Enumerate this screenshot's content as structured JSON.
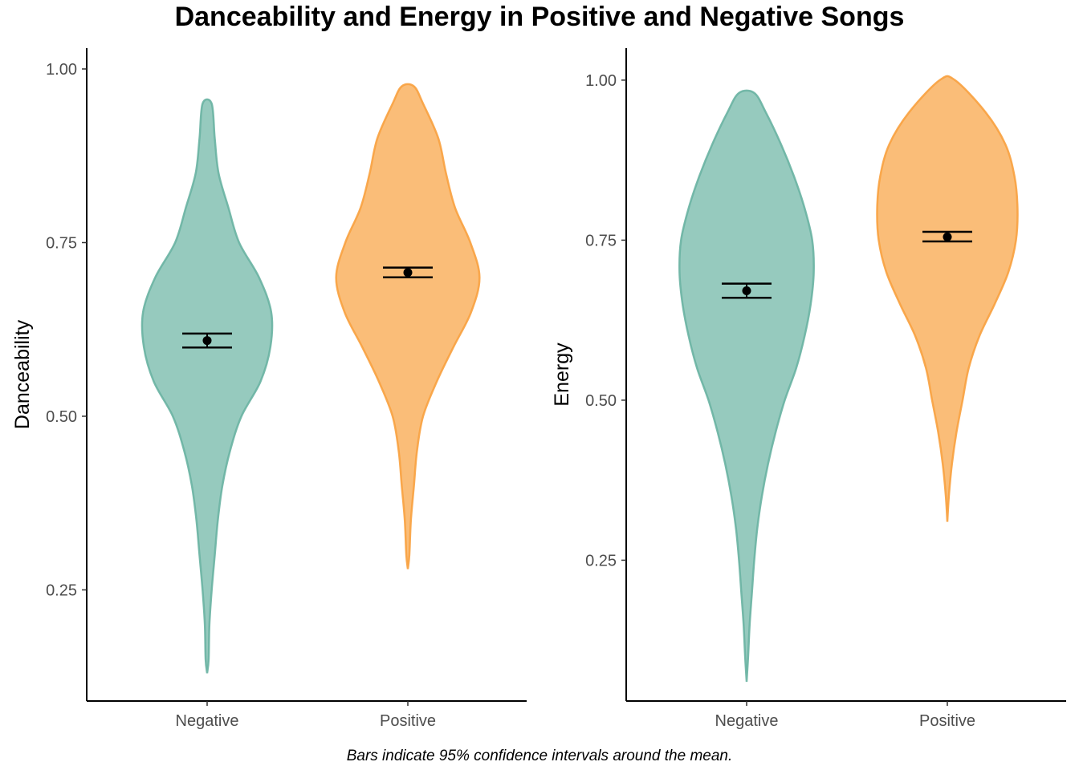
{
  "title": "Danceability and Energy in Positive and Negative Songs",
  "caption": "Bars indicate 95% confidence intervals around the mean.",
  "colors": {
    "Negative": "#69b3a2",
    "Positive": "#f8a13f",
    "stroke_alpha": 0.7
  },
  "chart_data": [
    {
      "type": "violin",
      "ylabel": "Danceability",
      "xlabel": "",
      "ylim": [
        0.09,
        1.03
      ],
      "yticks": [
        "0.25",
        "0.50",
        "0.75",
        "1.00"
      ],
      "categories": [
        "Negative",
        "Positive"
      ],
      "series": [
        {
          "name": "Negative",
          "mean": 0.609,
          "ci": [
            0.599,
            0.619
          ],
          "range": [
            0.13,
            0.95
          ],
          "density": [
            [
              0.13,
              0.0
            ],
            [
              0.15,
              0.02
            ],
            [
              0.2,
              0.03
            ],
            [
              0.25,
              0.06
            ],
            [
              0.3,
              0.1
            ],
            [
              0.35,
              0.14
            ],
            [
              0.4,
              0.2
            ],
            [
              0.45,
              0.3
            ],
            [
              0.5,
              0.45
            ],
            [
              0.55,
              0.7
            ],
            [
              0.6,
              0.83
            ],
            [
              0.65,
              0.84
            ],
            [
              0.7,
              0.68
            ],
            [
              0.75,
              0.42
            ],
            [
              0.8,
              0.28
            ],
            [
              0.85,
              0.15
            ],
            [
              0.9,
              0.1
            ],
            [
              0.95,
              0.06
            ]
          ]
        },
        {
          "name": "Positive",
          "mean": 0.707,
          "ci": [
            0.7,
            0.714
          ],
          "range": [
            0.28,
            0.975
          ],
          "density": [
            [
              0.28,
              0.0
            ],
            [
              0.3,
              0.02
            ],
            [
              0.35,
              0.04
            ],
            [
              0.4,
              0.08
            ],
            [
              0.45,
              0.12
            ],
            [
              0.5,
              0.2
            ],
            [
              0.55,
              0.38
            ],
            [
              0.6,
              0.6
            ],
            [
              0.65,
              0.83
            ],
            [
              0.7,
              0.94
            ],
            [
              0.75,
              0.82
            ],
            [
              0.8,
              0.62
            ],
            [
              0.85,
              0.5
            ],
            [
              0.9,
              0.4
            ],
            [
              0.95,
              0.2
            ],
            [
              0.975,
              0.08
            ]
          ]
        }
      ]
    },
    {
      "type": "violin",
      "ylabel": "Energy",
      "xlabel": "",
      "ylim": [
        0.03,
        1.05
      ],
      "yticks": [
        "0.25",
        "0.50",
        "0.75",
        "1.00"
      ],
      "categories": [
        "Negative",
        "Positive"
      ],
      "series": [
        {
          "name": "Negative",
          "mean": 0.671,
          "ci": [
            0.66,
            0.682
          ],
          "range": [
            0.06,
            0.98
          ],
          "density": [
            [
              0.06,
              0.0
            ],
            [
              0.1,
              0.02
            ],
            [
              0.15,
              0.04
            ],
            [
              0.2,
              0.07
            ],
            [
              0.25,
              0.1
            ],
            [
              0.3,
              0.14
            ],
            [
              0.35,
              0.2
            ],
            [
              0.4,
              0.28
            ],
            [
              0.45,
              0.38
            ],
            [
              0.5,
              0.5
            ],
            [
              0.55,
              0.65
            ],
            [
              0.6,
              0.76
            ],
            [
              0.65,
              0.84
            ],
            [
              0.7,
              0.88
            ],
            [
              0.75,
              0.86
            ],
            [
              0.8,
              0.76
            ],
            [
              0.85,
              0.62
            ],
            [
              0.9,
              0.45
            ],
            [
              0.95,
              0.25
            ],
            [
              0.98,
              0.1
            ]
          ]
        },
        {
          "name": "Positive",
          "mean": 0.755,
          "ci": [
            0.748,
            0.763
          ],
          "range": [
            0.31,
            1.0
          ],
          "density": [
            [
              0.31,
              0.0
            ],
            [
              0.35,
              0.02
            ],
            [
              0.4,
              0.06
            ],
            [
              0.45,
              0.12
            ],
            [
              0.5,
              0.2
            ],
            [
              0.55,
              0.28
            ],
            [
              0.6,
              0.42
            ],
            [
              0.65,
              0.62
            ],
            [
              0.7,
              0.8
            ],
            [
              0.75,
              0.9
            ],
            [
              0.8,
              0.92
            ],
            [
              0.85,
              0.88
            ],
            [
              0.9,
              0.76
            ],
            [
              0.95,
              0.5
            ],
            [
              1.0,
              0.1
            ]
          ]
        }
      ]
    }
  ]
}
